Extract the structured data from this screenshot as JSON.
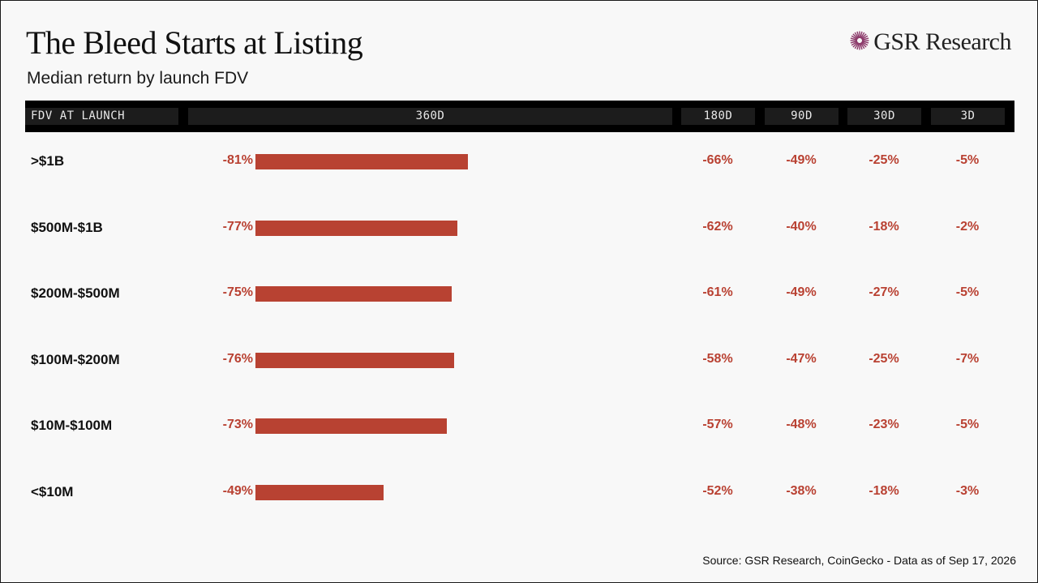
{
  "title": "The Bleed Starts at Listing",
  "subtitle": "Median return by launch FDV",
  "brand": {
    "name": "GSR Research",
    "icon": "sunburst-logo-icon",
    "icon_color": "#8c3a6b"
  },
  "columns": {
    "fdv": "FDV AT LAUNCH",
    "d360": "360D",
    "d180": "180D",
    "d90": "90D",
    "d30": "30D",
    "d3": "3D"
  },
  "colors": {
    "negative": "#b94132",
    "bar": "#b84232",
    "header_bg": "#000000"
  },
  "rows": [
    {
      "label": ">$1B",
      "d360": "-81%",
      "d180": "-66%",
      "d90": "-49%",
      "d30": "-25%",
      "d3": "-5%"
    },
    {
      "label": "$500M-$1B",
      "d360": "-77%",
      "d180": "-62%",
      "d90": "-40%",
      "d30": "-18%",
      "d3": "-2%"
    },
    {
      "label": "$200M-$500M",
      "d360": "-75%",
      "d180": "-61%",
      "d90": "-49%",
      "d30": "-27%",
      "d3": "-5%"
    },
    {
      "label": "$100M-$200M",
      "d360": "-76%",
      "d180": "-58%",
      "d90": "-47%",
      "d30": "-25%",
      "d3": "-7%"
    },
    {
      "label": "$10M-$100M",
      "d360": "-73%",
      "d180": "-57%",
      "d90": "-48%",
      "d30": "-23%",
      "d3": "-5%"
    },
    {
      "label": "<$10M",
      "d360": "-49%",
      "d180": "-52%",
      "d90": "-38%",
      "d30": "-18%",
      "d3": "-3%"
    }
  ],
  "chart_data": {
    "type": "bar",
    "categories": [
      ">$1B",
      "$500M-$1B",
      "$200M-$500M",
      "$100M-$200M",
      "$10M-$100M",
      "<$10M"
    ],
    "series": [
      {
        "name": "360D",
        "values": [
          -81,
          -77,
          -75,
          -76,
          -73,
          -49
        ]
      }
    ],
    "table_columns": [
      "180D",
      "90D",
      "30D",
      "3D"
    ],
    "table_values": [
      [
        -66,
        -49,
        -25,
        -5
      ],
      [
        -62,
        -40,
        -18,
        -2
      ],
      [
        -61,
        -49,
        -27,
        -5
      ],
      [
        -58,
        -47,
        -25,
        -7
      ],
      [
        -57,
        -48,
        -23,
        -5
      ],
      [
        -52,
        -38,
        -18,
        -3
      ]
    ],
    "title": "The Bleed Starts at Listing",
    "subtitle": "Median return by launch FDV",
    "xlabel": "",
    "ylabel": ""
  },
  "source": "Source: GSR Research, CoinGecko - Data as of Sep 17, 2026"
}
